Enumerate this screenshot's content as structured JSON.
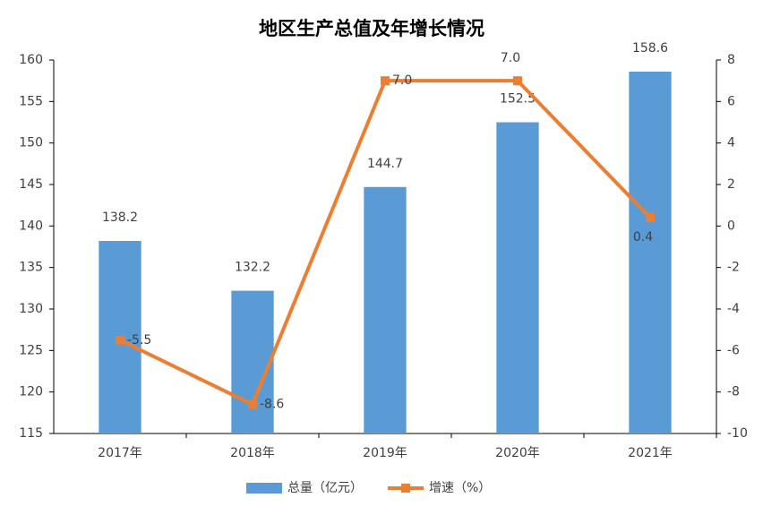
{
  "chart_data": {
    "type": "bar",
    "title": "地区生产总值及年增长情况",
    "categories": [
      "2017年",
      "2018年",
      "2019年",
      "2020年",
      "2021年"
    ],
    "series": [
      {
        "name": "总量（亿元）",
        "type": "bar",
        "color": "#5b9bd5",
        "values": [
          138.2,
          132.2,
          144.7,
          152.5,
          158.6
        ]
      },
      {
        "name": "增速（%）",
        "type": "line",
        "axis": "y2",
        "color": "#ed7d31",
        "values": [
          -5.5,
          -8.6,
          7.0,
          7.0,
          0.4
        ],
        "value_labels": [
          "-5.5",
          "-8.6",
          "7.0",
          "7.0",
          "0.4"
        ]
      }
    ],
    "ylim": [
      115,
      160
    ],
    "yticks": [
      115,
      120,
      125,
      130,
      135,
      140,
      145,
      150,
      155,
      160
    ],
    "y2lim": [
      -10,
      8
    ],
    "y2ticks": [
      -10,
      -8,
      -6,
      -4,
      -2,
      0,
      2,
      4,
      6,
      8
    ],
    "legend": "bottom",
    "grid": false
  }
}
